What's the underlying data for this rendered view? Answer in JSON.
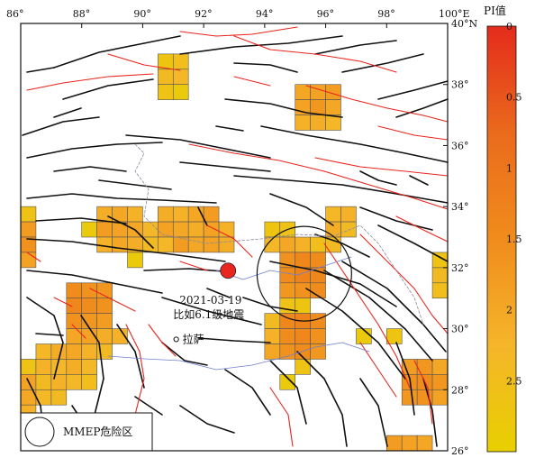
{
  "map": {
    "lon_labels": [
      "86°",
      "88°",
      "90°",
      "92°",
      "94°",
      "96°",
      "98°",
      "100°E"
    ],
    "lat_labels": [
      "40°N",
      "38°",
      "36°",
      "34°",
      "32°",
      "30°",
      "28°",
      "26°"
    ],
    "lon_range": [
      86,
      100
    ],
    "lat_range": [
      26,
      40
    ],
    "grid_cell_deg": 0.5
  },
  "colorbar": {
    "title": "PI值",
    "ticks": [
      "0",
      "0.5",
      "1",
      "1.5",
      "2",
      "2.5"
    ],
    "range": [
      0,
      3
    ],
    "colors": [
      "#e8d000",
      "#f5b52a",
      "#f08c1c",
      "#ea6a1c",
      "#e42b1c"
    ]
  },
  "event": {
    "date": "2021-03-19",
    "label": "比如6.1级地震",
    "lon": 92.8,
    "lat": 31.9,
    "color": "#e8251e"
  },
  "city": {
    "name": "拉萨",
    "lon": 91.1,
    "lat": 29.65
  },
  "mmep_zone": {
    "center_lon": 95.3,
    "center_lat": 31.8,
    "radius_deg": 1.55
  },
  "legend": {
    "label": "MMEP危险区"
  },
  "fault_colors": {
    "black": "#111111",
    "red": "#e8251e",
    "border": "#8a8aa0",
    "river": "#6f7fd0"
  },
  "pi_cells": [
    {
      "lon": 90.75,
      "lat": 38.75,
      "pi": 2.7
    },
    {
      "lon": 91.25,
      "lat": 38.75,
      "pi": 2.5
    },
    {
      "lon": 90.75,
      "lat": 38.25,
      "pi": 2.4
    },
    {
      "lon": 91.25,
      "lat": 38.25,
      "pi": 2.3
    },
    {
      "lon": 90.75,
      "lat": 37.75,
      "pi": 2.6
    },
    {
      "lon": 91.25,
      "lat": 37.75,
      "pi": 2.8
    },
    {
      "lon": 95.25,
      "lat": 37.75,
      "pi": 2.0
    },
    {
      "lon": 95.75,
      "lat": 37.75,
      "pi": 1.9
    },
    {
      "lon": 96.25,
      "lat": 37.75,
      "pi": 1.8
    },
    {
      "lon": 95.25,
      "lat": 37.25,
      "pi": 1.9
    },
    {
      "lon": 95.75,
      "lat": 37.25,
      "pi": 1.7
    },
    {
      "lon": 96.25,
      "lat": 37.25,
      "pi": 2.0
    },
    {
      "lon": 95.25,
      "lat": 36.75,
      "pi": 2.2
    },
    {
      "lon": 95.75,
      "lat": 36.75,
      "pi": 2.1
    },
    {
      "lon": 96.25,
      "lat": 36.75,
      "pi": 2.3
    },
    {
      "lon": 86.25,
      "lat": 33.75,
      "pi": 2.6
    },
    {
      "lon": 86.25,
      "lat": 33.25,
      "pi": 1.8
    },
    {
      "lon": 86.25,
      "lat": 32.75,
      "pi": 1.6
    },
    {
      "lon": 86.25,
      "lat": 32.25,
      "pi": 1.9
    },
    {
      "lon": 88.25,
      "lat": 33.25,
      "pi": 2.8
    },
    {
      "lon": 88.75,
      "lat": 33.75,
      "pi": 2.1
    },
    {
      "lon": 89.25,
      "lat": 33.75,
      "pi": 2.0
    },
    {
      "lon": 89.75,
      "lat": 33.75,
      "pi": 2.2
    },
    {
      "lon": 88.75,
      "lat": 33.25,
      "pi": 1.8
    },
    {
      "lon": 89.25,
      "lat": 33.25,
      "pi": 1.9
    },
    {
      "lon": 89.75,
      "lat": 33.25,
      "pi": 2.0
    },
    {
      "lon": 90.25,
      "lat": 33.25,
      "pi": 2.3
    },
    {
      "lon": 88.75,
      "lat": 32.75,
      "pi": 2.2
    },
    {
      "lon": 89.25,
      "lat": 32.75,
      "pi": 2.0
    },
    {
      "lon": 89.75,
      "lat": 32.75,
      "pi": 2.1
    },
    {
      "lon": 90.25,
      "lat": 32.75,
      "pi": 2.4
    },
    {
      "lon": 89.75,
      "lat": 32.25,
      "pi": 2.8
    },
    {
      "lon": 90.75,
      "lat": 33.75,
      "pi": 2.1
    },
    {
      "lon": 91.25,
      "lat": 33.75,
      "pi": 2.2
    },
    {
      "lon": 91.75,
      "lat": 33.75,
      "pi": 2.0
    },
    {
      "lon": 92.25,
      "lat": 33.75,
      "pi": 1.8
    },
    {
      "lon": 90.75,
      "lat": 33.25,
      "pi": 1.9
    },
    {
      "lon": 91.25,
      "lat": 33.25,
      "pi": 2.0
    },
    {
      "lon": 91.75,
      "lat": 33.25,
      "pi": 2.1
    },
    {
      "lon": 92.25,
      "lat": 33.25,
      "pi": 1.9
    },
    {
      "lon": 92.75,
      "lat": 33.25,
      "pi": 2.2
    },
    {
      "lon": 90.75,
      "lat": 32.75,
      "pi": 2.3
    },
    {
      "lon": 91.25,
      "lat": 32.75,
      "pi": 1.8
    },
    {
      "lon": 91.75,
      "lat": 32.75,
      "pi": 2.0
    },
    {
      "lon": 92.25,
      "lat": 32.75,
      "pi": 1.9
    },
    {
      "lon": 92.75,
      "lat": 32.75,
      "pi": 2.1
    },
    {
      "lon": 94.25,
      "lat": 33.25,
      "pi": 2.7
    },
    {
      "lon": 94.75,
      "lat": 33.25,
      "pi": 2.6
    },
    {
      "lon": 96.25,
      "lat": 33.75,
      "pi": 2.3
    },
    {
      "lon": 96.75,
      "lat": 33.75,
      "pi": 2.2
    },
    {
      "lon": 96.25,
      "lat": 33.25,
      "pi": 2.1
    },
    {
      "lon": 96.75,
      "lat": 33.25,
      "pi": 2.4
    },
    {
      "lon": 94.25,
      "lat": 32.75,
      "pi": 2.3
    },
    {
      "lon": 94.75,
      "lat": 32.75,
      "pi": 2.0
    },
    {
      "lon": 95.25,
      "lat": 32.75,
      "pi": 2.2
    },
    {
      "lon": 95.75,
      "lat": 32.75,
      "pi": 2.5
    },
    {
      "lon": 96.25,
      "lat": 32.75,
      "pi": 2.4
    },
    {
      "lon": 94.75,
      "lat": 32.25,
      "pi": 1.6
    },
    {
      "lon": 95.25,
      "lat": 32.25,
      "pi": 1.4
    },
    {
      "lon": 95.75,
      "lat": 32.25,
      "pi": 1.5
    },
    {
      "lon": 94.75,
      "lat": 31.75,
      "pi": 1.5
    },
    {
      "lon": 95.25,
      "lat": 31.75,
      "pi": 1.3
    },
    {
      "lon": 95.75,
      "lat": 31.75,
      "pi": 1.4
    },
    {
      "lon": 94.75,
      "lat": 31.25,
      "pi": 1.7
    },
    {
      "lon": 95.25,
      "lat": 31.25,
      "pi": 1.6
    },
    {
      "lon": 95.75,
      "lat": 31.25,
      "pi": 1.5
    },
    {
      "lon": 94.75,
      "lat": 30.75,
      "pi": 2.6
    },
    {
      "lon": 95.25,
      "lat": 30.75,
      "pi": 2.7
    },
    {
      "lon": 94.25,
      "lat": 30.25,
      "pi": 2.4
    },
    {
      "lon": 94.75,
      "lat": 30.25,
      "pi": 1.4
    },
    {
      "lon": 95.25,
      "lat": 30.25,
      "pi": 1.3
    },
    {
      "lon": 95.75,
      "lat": 30.25,
      "pi": 1.5
    },
    {
      "lon": 94.25,
      "lat": 29.75,
      "pi": 2.2
    },
    {
      "lon": 94.75,
      "lat": 29.75,
      "pi": 1.5
    },
    {
      "lon": 95.25,
      "lat": 29.75,
      "pi": 1.4
    },
    {
      "lon": 95.75,
      "lat": 29.75,
      "pi": 1.6
    },
    {
      "lon": 94.25,
      "lat": 29.25,
      "pi": 2.0
    },
    {
      "lon": 94.75,
      "lat": 29.25,
      "pi": 1.6
    },
    {
      "lon": 95.25,
      "lat": 29.25,
      "pi": 1.5
    },
    {
      "lon": 95.75,
      "lat": 29.25,
      "pi": 1.7
    },
    {
      "lon": 95.25,
      "lat": 28.75,
      "pi": 2.6
    },
    {
      "lon": 94.75,
      "lat": 28.25,
      "pi": 2.8
    },
    {
      "lon": 97.25,
      "lat": 29.75,
      "pi": 2.8
    },
    {
      "lon": 98.25,
      "lat": 29.75,
      "pi": 2.7
    },
    {
      "lon": 99.75,
      "lat": 32.25,
      "pi": 2.6
    },
    {
      "lon": 99.75,
      "lat": 31.75,
      "pi": 2.4
    },
    {
      "lon": 99.75,
      "lat": 31.25,
      "pi": 2.5
    },
    {
      "lon": 87.75,
      "lat": 31.25,
      "pi": 1.5
    },
    {
      "lon": 88.25,
      "lat": 31.25,
      "pi": 1.6
    },
    {
      "lon": 88.75,
      "lat": 31.25,
      "pi": 1.7
    },
    {
      "lon": 87.75,
      "lat": 30.75,
      "pi": 1.4
    },
    {
      "lon": 88.25,
      "lat": 30.75,
      "pi": 1.5
    },
    {
      "lon": 88.75,
      "lat": 30.75,
      "pi": 1.6
    },
    {
      "lon": 87.75,
      "lat": 30.25,
      "pi": 1.6
    },
    {
      "lon": 88.25,
      "lat": 30.25,
      "pi": 1.7
    },
    {
      "lon": 88.75,
      "lat": 30.25,
      "pi": 1.8
    },
    {
      "lon": 87.75,
      "lat": 29.75,
      "pi": 2.0
    },
    {
      "lon": 88.25,
      "lat": 29.75,
      "pi": 1.9
    },
    {
      "lon": 88.75,
      "lat": 29.75,
      "pi": 2.1
    },
    {
      "lon": 89.25,
      "lat": 29.75,
      "pi": 2.2
    },
    {
      "lon": 86.75,
      "lat": 29.25,
      "pi": 2.3
    },
    {
      "lon": 87.25,
      "lat": 29.25,
      "pi": 2.1
    },
    {
      "lon": 87.75,
      "lat": 29.25,
      "pi": 2.0
    },
    {
      "lon": 88.25,
      "lat": 29.25,
      "pi": 2.2
    },
    {
      "lon": 88.75,
      "lat": 29.25,
      "pi": 2.4
    },
    {
      "lon": 86.25,
      "lat": 28.75,
      "pi": 2.6
    },
    {
      "lon": 86.75,
      "lat": 28.75,
      "pi": 2.2
    },
    {
      "lon": 87.25,
      "lat": 28.75,
      "pi": 2.3
    },
    {
      "lon": 87.75,
      "lat": 28.75,
      "pi": 2.1
    },
    {
      "lon": 88.25,
      "lat": 28.75,
      "pi": 2.3
    },
    {
      "lon": 86.25,
      "lat": 28.25,
      "pi": 1.9
    },
    {
      "lon": 86.75,
      "lat": 28.25,
      "pi": 2.4
    },
    {
      "lon": 87.25,
      "lat": 28.25,
      "pi": 2.2
    },
    {
      "lon": 87.75,
      "lat": 28.25,
      "pi": 2.3
    },
    {
      "lon": 88.25,
      "lat": 28.25,
      "pi": 2.5
    },
    {
      "lon": 86.25,
      "lat": 27.75,
      "pi": 2.0
    },
    {
      "lon": 86.75,
      "lat": 27.75,
      "pi": 2.3
    },
    {
      "lon": 87.25,
      "lat": 27.75,
      "pi": 2.4
    },
    {
      "lon": 86.25,
      "lat": 27.25,
      "pi": 2.2
    },
    {
      "lon": 98.75,
      "lat": 28.75,
      "pi": 1.8
    },
    {
      "lon": 99.25,
      "lat": 28.75,
      "pi": 1.7
    },
    {
      "lon": 99.75,
      "lat": 28.75,
      "pi": 2.0
    },
    {
      "lon": 98.75,
      "lat": 28.25,
      "pi": 1.6
    },
    {
      "lon": 99.25,
      "lat": 28.25,
      "pi": 1.5
    },
    {
      "lon": 99.75,
      "lat": 28.25,
      "pi": 1.7
    },
    {
      "lon": 98.75,
      "lat": 27.75,
      "pi": 1.7
    },
    {
      "lon": 99.25,
      "lat": 27.75,
      "pi": 1.6
    },
    {
      "lon": 99.75,
      "lat": 27.75,
      "pi": 1.9
    },
    {
      "lon": 98.25,
      "lat": 26.25,
      "pi": 1.8
    },
    {
      "lon": 98.75,
      "lat": 26.25,
      "pi": 1.9
    },
    {
      "lon": 99.25,
      "lat": 26.25,
      "pi": 2.0
    }
  ]
}
